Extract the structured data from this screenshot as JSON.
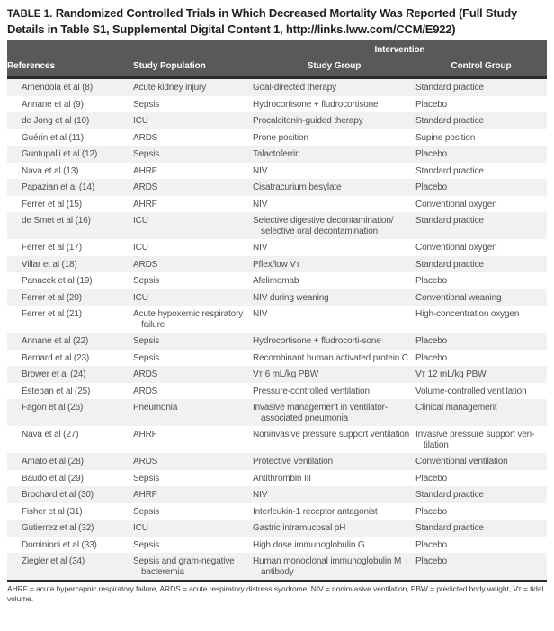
{
  "title": {
    "label": "TABLE 1.",
    "text": "Randomized Controlled Trials in Which Decreased Mortality Was Reported (Full Study Details in Table S1, Supplemental Digital Content 1, http://links.lww.com/CCM/E922)"
  },
  "table": {
    "intervention_header": "Intervention",
    "columns": [
      "References",
      "Study Population",
      "Study Group",
      "Control Group"
    ],
    "rows": [
      {
        "reference": "Amendola et al (8)",
        "population": "Acute kidney injury",
        "study_group": "Goal-directed therapy",
        "control_group": "Standard practice"
      },
      {
        "reference": "Annane et al (9)",
        "population": "Sepsis",
        "study_group": "Hydrocortisone + fludrocortisone",
        "control_group": "Placebo"
      },
      {
        "reference": "de Jong et al (10)",
        "population": "ICU",
        "study_group": "Procalcitonin-guided therapy",
        "control_group": "Standard practice"
      },
      {
        "reference": "Guérin et al (11)",
        "population": "ARDS",
        "study_group": "Prone position",
        "control_group": "Supine position"
      },
      {
        "reference": "Guntupalli et al (12)",
        "population": "Sepsis",
        "study_group": "Talactoferrin",
        "control_group": "Placebo"
      },
      {
        "reference": "Nava et al (13)",
        "population": "AHRF",
        "study_group": "NIV",
        "control_group": "Standard practice"
      },
      {
        "reference": "Papazian et al (14)",
        "population": "ARDS",
        "study_group": "Cisatracurium besylate",
        "control_group": "Placebo"
      },
      {
        "reference": "Ferrer et al (15)",
        "population": "AHRF",
        "study_group": "NIV",
        "control_group": "Conventional oxygen"
      },
      {
        "reference": "de Smet et al (16)",
        "population": "ICU",
        "study_group": "Selective digestive decontamination/ selective oral decontamination",
        "control_group": "Standard practice"
      },
      {
        "reference": "Ferrer et al (17)",
        "population": "ICU",
        "study_group": "NIV",
        "control_group": "Conventional oxygen"
      },
      {
        "reference": "Villar et al (18)",
        "population": "ARDS",
        "study_group": "Pflex/low Vᴛ",
        "control_group": "Standard practice"
      },
      {
        "reference": "Panacek et al (19)",
        "population": "Sepsis",
        "study_group": "Afelimomab",
        "control_group": "Placebo"
      },
      {
        "reference": "Ferrer et al (20)",
        "population": "ICU",
        "study_group": "NIV during weaning",
        "control_group": "Conventional weaning"
      },
      {
        "reference": "Ferrer et al (21)",
        "population": "Acute hypoxemic respiratory failure",
        "study_group": "NIV",
        "control_group": "High-concentration oxygen"
      },
      {
        "reference": "Annane et al (22)",
        "population": "Sepsis",
        "study_group": "Hydrocortisone + fludrocorti-sone",
        "control_group": "Placebo"
      },
      {
        "reference": "Bernard et al (23)",
        "population": "Sepsis",
        "study_group": "Recombinant human activated protein C",
        "control_group": "Placebo"
      },
      {
        "reference": "Brower et al (24)",
        "population": "ARDS",
        "study_group": "Vᴛ 6 mL/kg PBW",
        "control_group": "Vᴛ 12 mL/kg PBW"
      },
      {
        "reference": "Esteban et al (25)",
        "population": "ARDS",
        "study_group": "Pressure-controlled ventilation",
        "control_group": "Volume-controlled ventilation"
      },
      {
        "reference": "Fagon et al (26)",
        "population": "Pneumonia",
        "study_group": "Invasive management in ventilator-associated pneumonia",
        "control_group": "Clinical management"
      },
      {
        "reference": "Nava et al (27)",
        "population": "AHRF",
        "study_group": "Noninvasive pressure support ventilation",
        "control_group": "Invasive pressure support ven-tilation"
      },
      {
        "reference": "Amato et al (28)",
        "population": "ARDS",
        "study_group": "Protective ventilation",
        "control_group": "Conventional ventilation"
      },
      {
        "reference": "Baudo et al (29)",
        "population": "Sepsis",
        "study_group": "Antithrombin III",
        "control_group": "Placebo"
      },
      {
        "reference": "Brochard et al (30)",
        "population": "AHRF",
        "study_group": "NIV",
        "control_group": "Standard practice"
      },
      {
        "reference": "Fisher et al (31)",
        "population": "Sepsis",
        "study_group": "Interleukin-1 receptor antagonist",
        "control_group": "Placebo"
      },
      {
        "reference": "Gutierrez et al (32)",
        "population": "ICU",
        "study_group": "Gastric intramucosal pH",
        "control_group": "Standard practice"
      },
      {
        "reference": "Dominioni et al (33)",
        "population": "Sepsis",
        "study_group": "High dose immunoglobulin G",
        "control_group": "Placebo"
      },
      {
        "reference": "Ziegler et al (34)",
        "population": "Sepsis and gram-negative bacteremia",
        "study_group": "Human monoclonal immunoglobulin M antibody",
        "control_group": "Placebo"
      }
    ]
  },
  "footnote": "AHRF = acute hypercapnic respiratory failure, ARDS = acute respiratory distress syndrome, NIV = noninvasive ventilation, PBW = predicted body weight, Vᴛ = tidal volume.",
  "colors": {
    "header_bg": "#58595b",
    "row_stripe": "#f1f1f2",
    "rule_black": "#2b2b2d"
  }
}
